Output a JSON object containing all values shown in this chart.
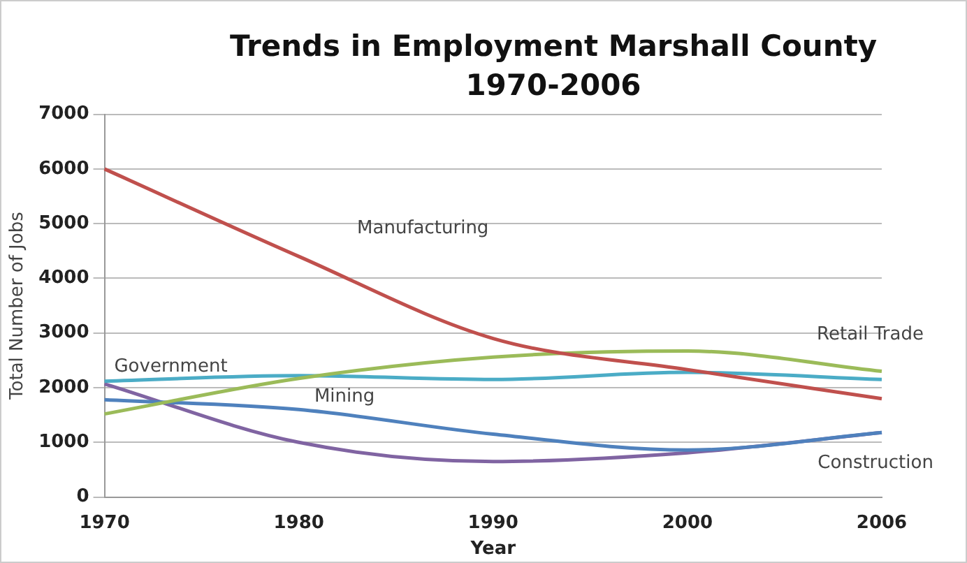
{
  "chart_data": {
    "type": "line",
    "title": "Trends in Employment Marshall County 1970-2006",
    "xlabel": "Year",
    "ylabel": "Total Number of Jobs",
    "categories": [
      "1970",
      "1980",
      "1990",
      "2000",
      "2006"
    ],
    "series": [
      {
        "name": "Manufacturing",
        "color": "#c0504d",
        "values": [
          6000,
          4400,
          2900,
          2330,
          1800
        ]
      },
      {
        "name": "Retail Trade",
        "color": "#9bbb59",
        "values": [
          1520,
          2170,
          2560,
          2670,
          2300
        ]
      },
      {
        "name": "Government",
        "color": "#4bacc6",
        "values": [
          2120,
          2220,
          2150,
          2280,
          2150
        ]
      },
      {
        "name": "Mining",
        "color": "#4f81bd",
        "values": [
          1780,
          1600,
          1150,
          860,
          1180
        ]
      },
      {
        "name": "Construction",
        "color": "#8064a2",
        "values": [
          2070,
          1000,
          650,
          810,
          1180
        ]
      }
    ],
    "ylim": [
      0,
      7000
    ],
    "yticks": [
      0,
      1000,
      2000,
      3000,
      4000,
      5000,
      6000,
      7000
    ],
    "grid": "y",
    "legend": false,
    "marker": "none",
    "line_style": "solid"
  }
}
